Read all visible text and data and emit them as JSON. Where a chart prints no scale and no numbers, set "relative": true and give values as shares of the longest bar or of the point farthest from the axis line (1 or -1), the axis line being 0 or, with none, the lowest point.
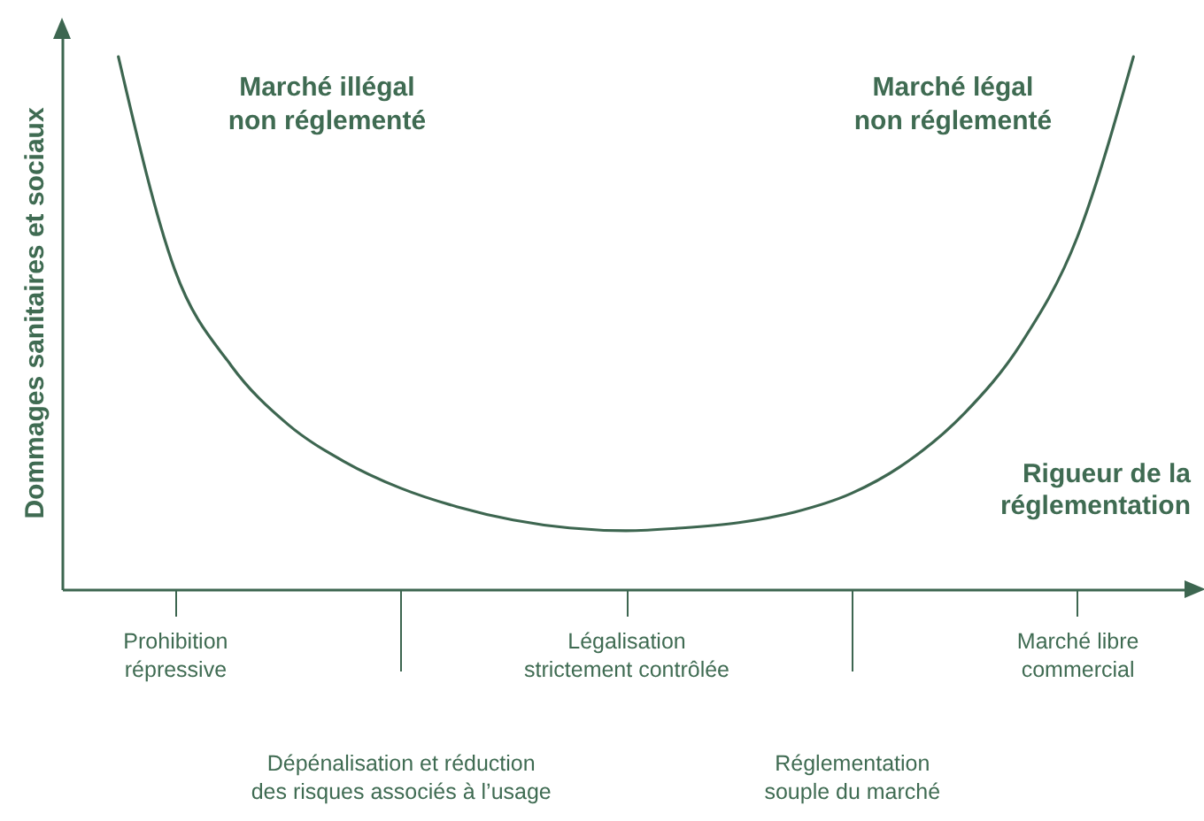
{
  "chart_data": {
    "type": "line",
    "relative": true,
    "xlabel": "Rigueur de la réglementation",
    "ylabel": "Dommages sanitaires et sociaux",
    "categories": [
      null,
      "Prohibition répressive",
      null,
      null,
      null,
      "Dépénalisation et réduction des risques associés à l’usage",
      null,
      null,
      null,
      "Légalisation strictement contrôlée",
      null,
      null,
      null,
      "Réglementation souple du marché",
      null,
      null,
      null,
      "Marché libre commercial",
      null
    ],
    "series": [
      {
        "color": "#3d6650",
        "values": [
          1,
          0.6,
          0.42,
          0.31,
          0.24,
          0.19,
          0.155,
          0.13,
          0.115,
          0.11,
          0.115,
          0.125,
          0.145,
          0.18,
          0.24,
          0.33,
          0.46,
          0.66,
          1
        ]
      }
    ],
    "annotations": [
      "Marché illégal non réglementé",
      "Marché légal non réglementé"
    ],
    "marker": "none",
    "line_style": "solid",
    "grid": false
  }
}
